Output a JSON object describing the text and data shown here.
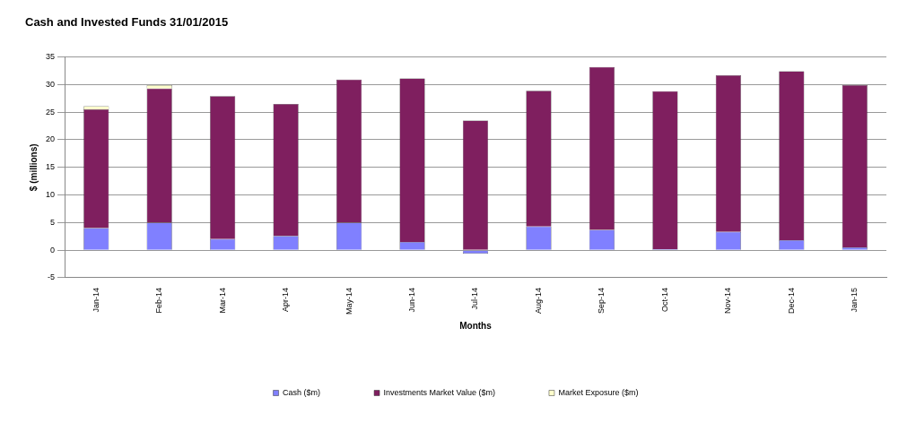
{
  "chart_data": {
    "type": "bar",
    "title": "Cash and Invested Funds 31/01/2015",
    "xlabel": "Months",
    "ylabel": "$ (millions)",
    "categories": [
      "Jan-14",
      "Feb-14",
      "Mar-14",
      "Apr-14",
      "May-14",
      "Jun-14",
      "Jul-14",
      "Aug-14",
      "Sep-14",
      "Oct-14",
      "Nov-14",
      "Dec-14",
      "Jan-15"
    ],
    "stacked": true,
    "series": [
      {
        "name": "Cash ($m)",
        "color": "#8080ff",
        "values": [
          4,
          5,
          2,
          2.6,
          5,
          1.5,
          -0.6,
          4.3,
          3.7,
          0.2,
          3.3,
          1.8,
          0.5
        ]
      },
      {
        "name": "Investments Market Value ($m)",
        "color": "#7f1f5f",
        "values": [
          21.5,
          24.3,
          25.9,
          23.9,
          25.9,
          29.6,
          23.5,
          24.6,
          29.5,
          28.6,
          28.4,
          30.6,
          29.4
        ]
      },
      {
        "name": "Market Exposure ($m)",
        "color": "#ffffcc",
        "values": [
          0.6,
          0.6,
          0,
          0,
          0,
          0,
          0,
          0,
          0,
          0,
          0,
          0,
          0
        ]
      }
    ],
    "ylim": [
      -5,
      35
    ],
    "yticks": [
      -5,
      0,
      5,
      10,
      15,
      20,
      25,
      30,
      35
    ],
    "grid": "y",
    "legend": "bottom"
  }
}
